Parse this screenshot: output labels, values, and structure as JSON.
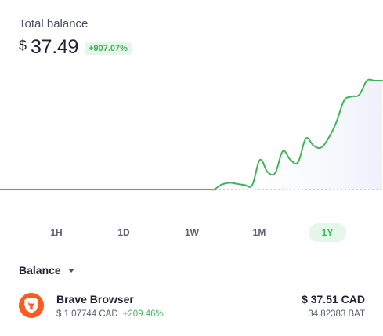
{
  "header": {
    "title": "Total balance",
    "currency_symbol": "$",
    "amount": "37.49",
    "change": "+907.07%"
  },
  "colors": {
    "accent_green": "#3fb55a",
    "badge_bg": "#e5f6ea",
    "brave_orange": "#ff5a1f"
  },
  "chart_data": {
    "type": "line",
    "x": [
      0,
      5,
      10,
      15,
      20,
      25,
      30,
      35,
      40,
      45,
      50,
      55,
      56,
      58,
      60,
      62,
      64,
      66,
      68,
      70,
      72,
      74,
      76,
      78,
      80,
      82,
      84,
      86,
      88,
      90,
      92,
      94,
      96,
      98,
      100
    ],
    "values": [
      0,
      0,
      0,
      0,
      0,
      0,
      0,
      0,
      0,
      0,
      0,
      0,
      0,
      1.4,
      1.9,
      1.6,
      1.3,
      1.3,
      8.4,
      5.0,
      4.7,
      10.9,
      8.4,
      7.8,
      14.5,
      12.5,
      11.9,
      14.7,
      19.1,
      25.2,
      26.4,
      26.9,
      30.9,
      30.9,
      30.9
    ],
    "baseline": 0,
    "ylim": [
      0,
      32
    ],
    "grid": false,
    "legend": "none",
    "line_color": "#3fb55a"
  },
  "ranges": [
    {
      "label": "1H",
      "active": false
    },
    {
      "label": "1D",
      "active": false
    },
    {
      "label": "1W",
      "active": false
    },
    {
      "label": "1M",
      "active": false
    },
    {
      "label": "1Y",
      "active": true
    }
  ],
  "balance_section": {
    "label": "Balance"
  },
  "assets": [
    {
      "name": "Brave Browser",
      "price": "$ 1.07744 CAD",
      "change": "+209.46%",
      "fiat_value": "$ 37.51 CAD",
      "token_amount": "34.82383 BAT",
      "icon": "brave-lion-icon"
    }
  ]
}
